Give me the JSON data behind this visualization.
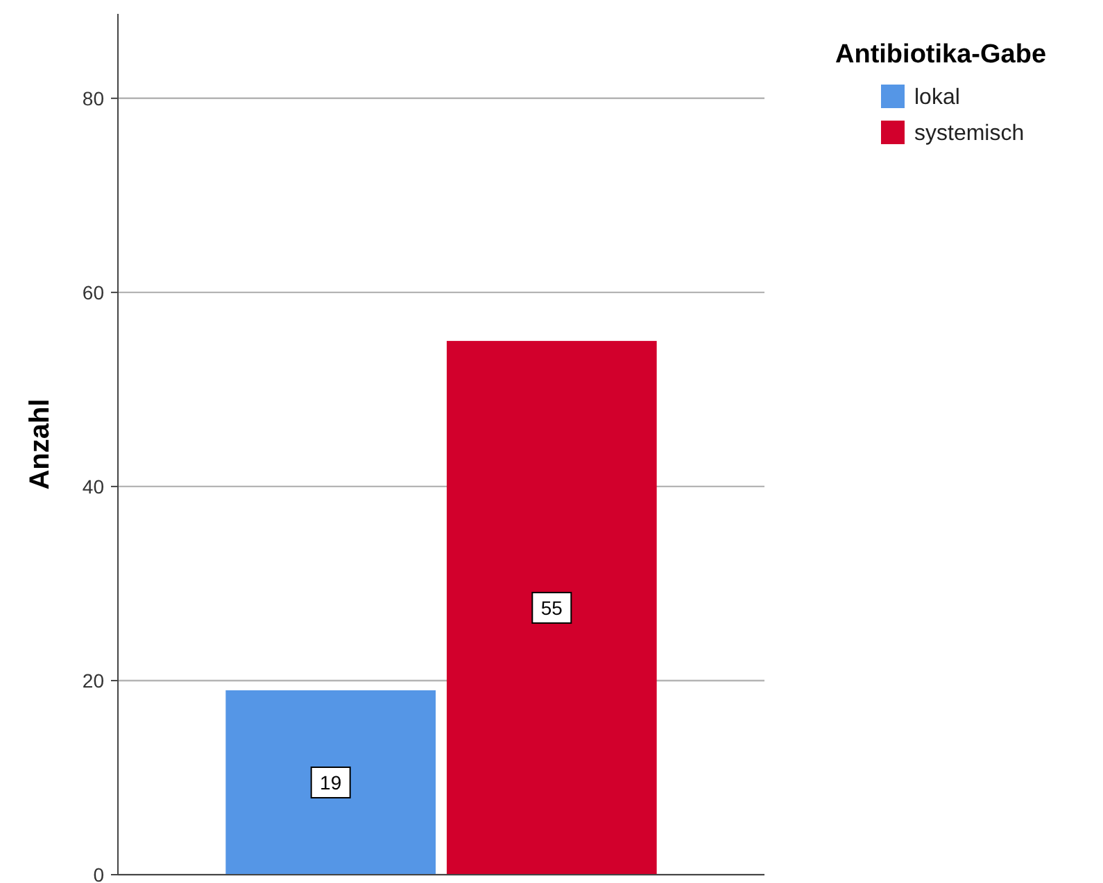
{
  "chart_data": {
    "type": "bar",
    "ylabel": "Anzahl",
    "legend_title": "Antibiotika-Gabe",
    "categories": [
      null
    ],
    "series": [
      {
        "name": "lokal",
        "color": "#5596e6",
        "values": [
          19
        ]
      },
      {
        "name": "systemisch",
        "color": "#d2002c",
        "values": [
          55
        ]
      }
    ],
    "ylim": [
      0,
      88.7
    ],
    "yticks": [
      0,
      20,
      40,
      60,
      80
    ],
    "grid": "y",
    "legend": "top right",
    "data_labels": true
  }
}
